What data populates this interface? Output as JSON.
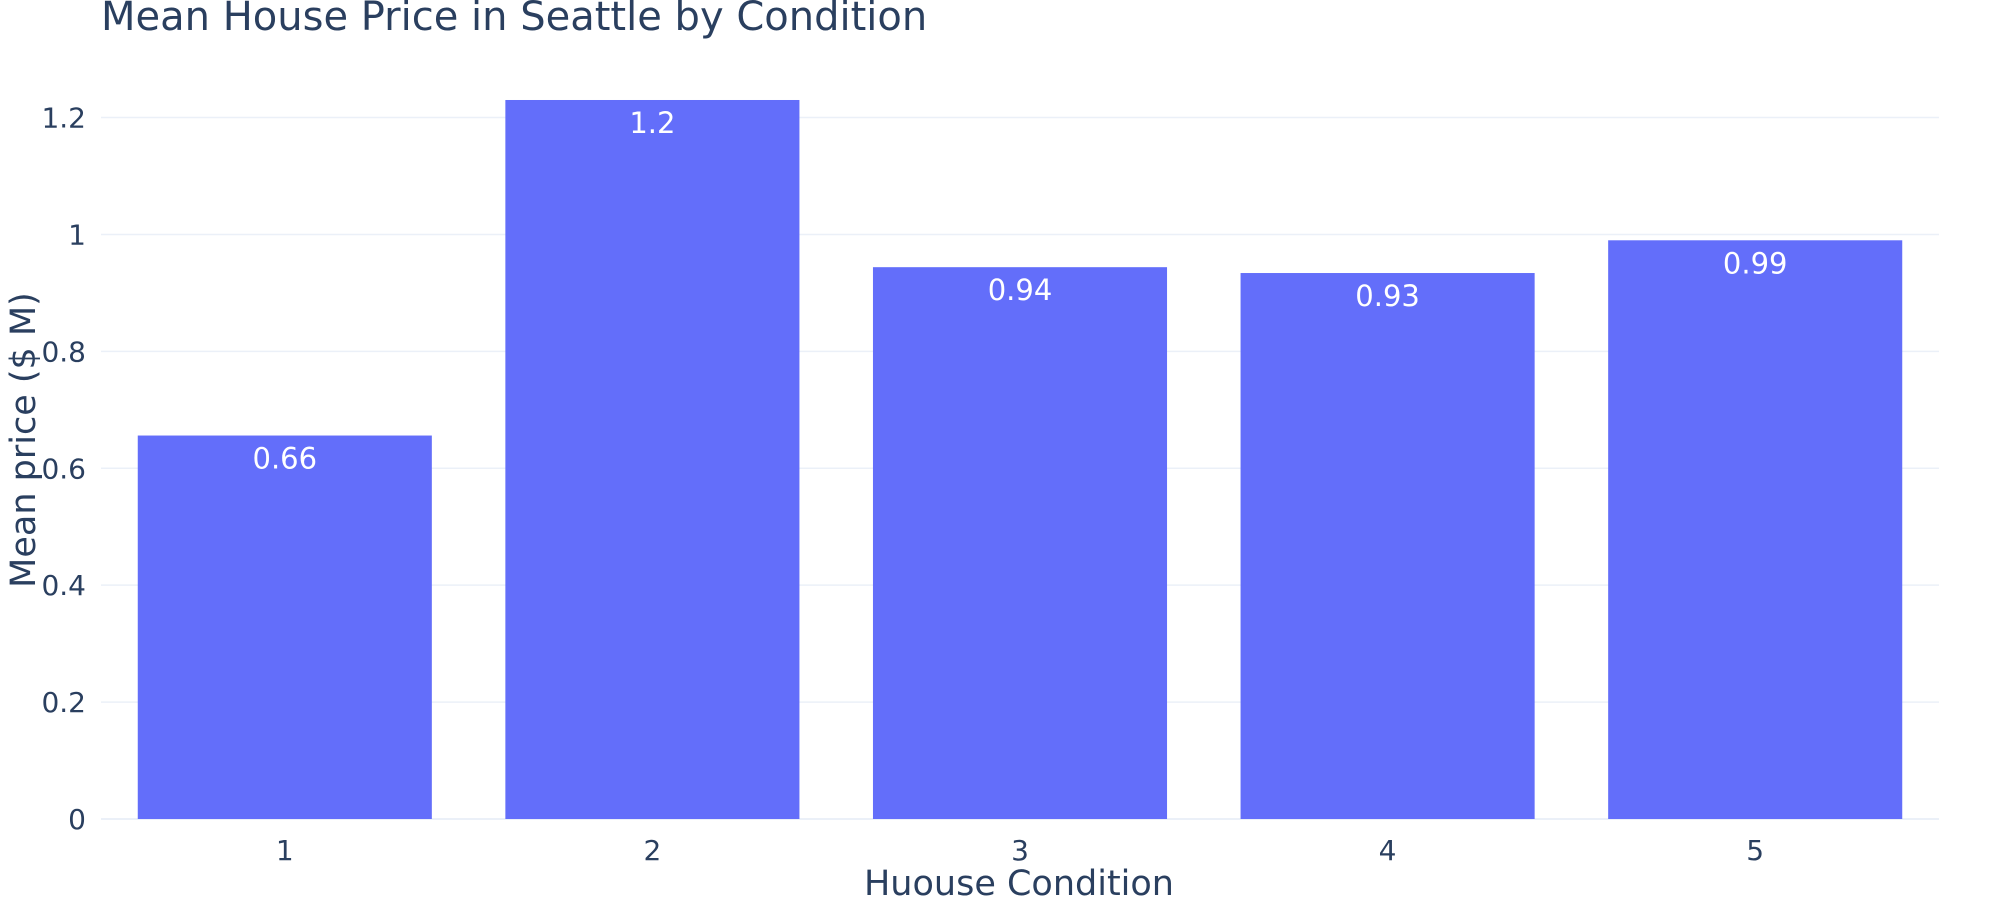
{
  "chart_data": {
    "type": "bar",
    "title": "Mean House Price in Seattle by Condition",
    "xlabel": "Huouse Condition",
    "ylabel": "Mean price ($ M)",
    "categories": [
      "1",
      "2",
      "3",
      "4",
      "5"
    ],
    "values": [
      0.656,
      1.23,
      0.944,
      0.934,
      0.99
    ],
    "data_labels": [
      "0.66",
      "1.2",
      "0.94",
      "0.93",
      "0.99"
    ],
    "y_ticks": [
      0,
      0.2,
      0.4,
      0.6,
      0.8,
      1,
      1.2
    ],
    "y_tick_labels": [
      "0",
      "0.2",
      "0.4",
      "0.6",
      "0.8",
      "1",
      "1.2"
    ],
    "ylim": [
      0,
      1.295
    ],
    "grid": true,
    "legend": "none",
    "colors": {
      "bar": "#636efa",
      "grid": "#ebf0f8",
      "text": "#2a3f5f",
      "data_label": "#ffffff"
    }
  }
}
